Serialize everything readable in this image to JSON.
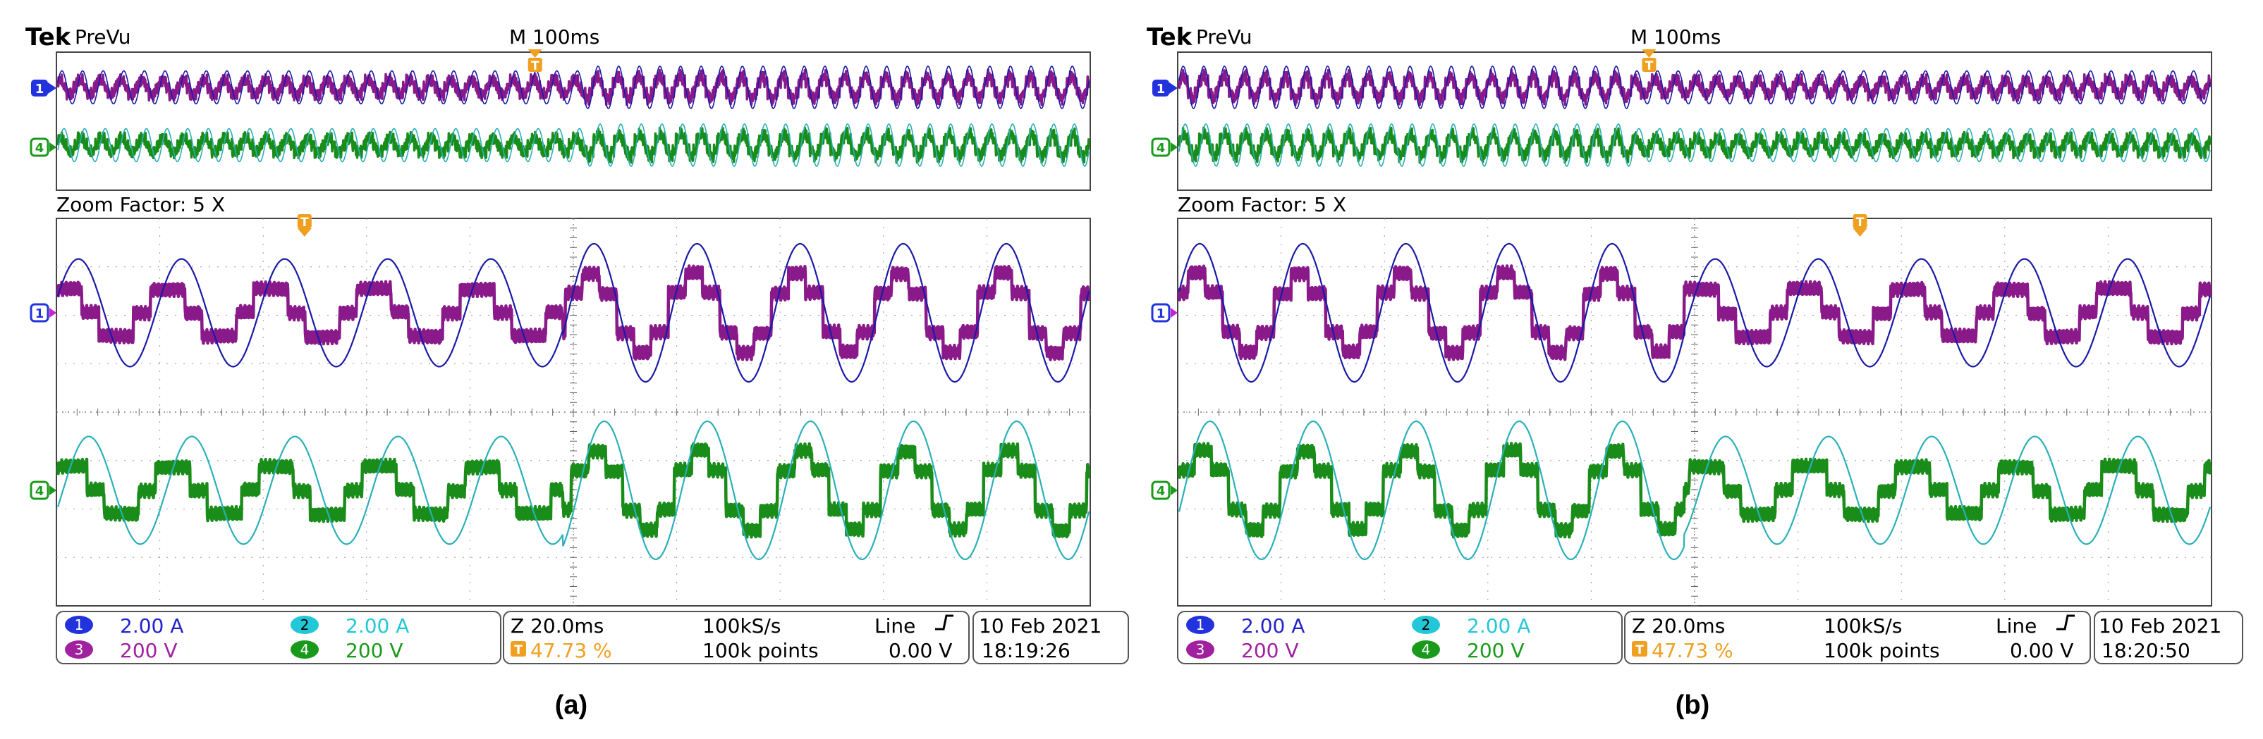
{
  "panels": [
    {
      "id": "a",
      "caption": "(a)",
      "brand": "Tek",
      "mode": "PreVu",
      "timebase": "M 100ms",
      "zoom_label": "Zoom Factor: 5 X",
      "trigger_marker": "T",
      "change_fraction_overview": 0.51,
      "change_fraction_zoom": 0.49,
      "before_state": "balanced",
      "after_state": "distorted",
      "trigger_fraction_overview": 0.463,
      "trigger_fraction_zoom": 0.24,
      "channel_markers": [
        "1",
        "4"
      ],
      "readout": {
        "ch1": {
          "num": "1",
          "value": "2.00 A"
        },
        "ch2": {
          "num": "2",
          "value": "2.00 A"
        },
        "ch3": {
          "num": "3",
          "value": "200 V"
        },
        "ch4": {
          "num": "4",
          "value": "200 V"
        },
        "zoom_time": "Z 20.0ms",
        "trigger_pos": "47.73 %",
        "sample_rate": "100kS/s",
        "record_length": "100k points",
        "trigger_source": "Line",
        "trigger_level": "0.00 V",
        "date": "10 Feb  2021",
        "time": "18:19:26"
      }
    },
    {
      "id": "b",
      "caption": "(b)",
      "brand": "Tek",
      "mode": "PreVu",
      "timebase": "M 100ms",
      "zoom_label": "Zoom Factor: 5 X",
      "trigger_marker": "T",
      "change_fraction_overview": 0.44,
      "change_fraction_zoom": 0.49,
      "before_state": "distorted",
      "after_state": "balanced",
      "trigger_fraction_overview": 0.456,
      "trigger_fraction_zoom": 0.66,
      "channel_markers": [
        "1",
        "4"
      ],
      "readout": {
        "ch1": {
          "num": "1",
          "value": "2.00 A"
        },
        "ch2": {
          "num": "2",
          "value": "2.00 A"
        },
        "ch3": {
          "num": "3",
          "value": "200 V"
        },
        "ch4": {
          "num": "4",
          "value": "200 V"
        },
        "zoom_time": "Z 20.0ms",
        "trigger_pos": "47.73 %",
        "sample_rate": "100kS/s",
        "record_length": "100k points",
        "trigger_source": "Line",
        "trigger_level": "0.00 V",
        "date": "10 Feb  2021",
        "time": "18:20:50"
      }
    }
  ],
  "colors": {
    "ch1": "#1a1aa8",
    "ch2": "#2ab0b8",
    "ch3": "#8a1a8a",
    "ch4": "#1a8c1a",
    "ch1_label": "#2222cc",
    "ch2_label": "#22c8d8",
    "ch3_label": "#a020a0",
    "ch4_label": "#1a9a1a",
    "trigger": "#f0a020",
    "grid": "#888888",
    "frame": "#444444"
  }
}
